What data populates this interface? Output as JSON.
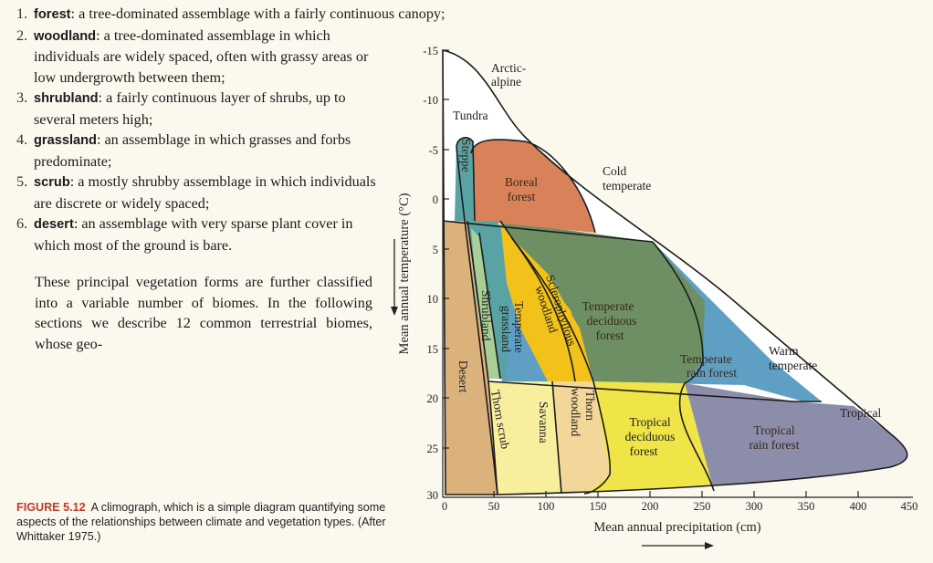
{
  "list": [
    {
      "num": "1.",
      "term": "forest",
      "desc": ": a tree-dominated assemblage with a fairly continuous canopy;"
    },
    {
      "num": "2.",
      "term": "woodland",
      "desc": ": a tree-dominated assemblage in which individuals are widely spaced, often with grassy areas or low undergrowth between them;"
    },
    {
      "num": "3.",
      "term": "shrubland",
      "desc": ": a fairly continuous layer of shrubs, up to several meters high;"
    },
    {
      "num": "4.",
      "term": "grassland",
      "desc": ": an assemblage in which grasses and forbs predominate;"
    },
    {
      "num": "5.",
      "term": "scrub",
      "desc": ": a mostly shrubby assemblage in which individuals are discrete or widely spaced;"
    },
    {
      "num": "6.",
      "term": "desert",
      "desc": ": an assemblage with very sparse plant cover in which most of the ground is bare."
    }
  ],
  "paragraph": "These principal vegetation forms are further classified into a variable number of biomes. In the following sections we describe 12 common terrestrial biomes, whose geo-",
  "caption": {
    "label": "FIGURE 5.12",
    "text": "A climograph, which is a simple diagram quantifying some aspects of the relationships between climate and vegetation types. (After Whittaker 1975.)"
  },
  "figure": {
    "y_axis_label": "Mean annual temperature (°C)",
    "x_axis_label": "Mean annual precipitation (cm)",
    "y_ticks": [
      "-15",
      "-10",
      "-5",
      "0",
      "5",
      "10",
      "15",
      "20",
      "25",
      "30"
    ],
    "x_ticks": [
      "0",
      "50",
      "100",
      "150",
      "200",
      "250",
      "300",
      "350",
      "400",
      "450"
    ],
    "labels": {
      "arctic_1": "Arctic-",
      "arctic_2": "alpine",
      "tundra": "Tundra",
      "steppe": "Steppe",
      "boreal_1": "Boreal",
      "boreal_2": "forest",
      "cold_1": "Cold",
      "cold_2": "temperate",
      "shrubland": "Shrubland",
      "temp_grass_1": "Temperate",
      "temp_grass_2": "grassland",
      "scler_1": "Sclerophyllous",
      "scler_2": "woodland",
      "temp_dec_1": "Temperate",
      "temp_dec_2": "deciduous",
      "temp_dec_3": "forest",
      "temp_rain_1": "Temperate",
      "temp_rain_2": "rain forest",
      "warm_1": "Warm",
      "warm_2": "temperate",
      "tropical": "Tropical",
      "desert": "Desert",
      "thorn_scrub": "Thorn scrub",
      "savanna": "Savanna",
      "thorn_wood_1": "Thorn",
      "thorn_wood_2": "woodland",
      "trop_dec_1": "Tropical",
      "trop_dec_2": "deciduous",
      "trop_dec_3": "forest",
      "trop_rain_1": "Tropical",
      "trop_rain_2": "rain forest"
    },
    "colors": {
      "tundra": "#ffffff",
      "boreal": "#d9825a",
      "temperate_deciduous": "#6d8f63",
      "temperate_grassland": "#f2c21a",
      "shrubland": "#a9cf96",
      "steppe": "#5aa3a5",
      "cool_blue": "#5f9fc4",
      "desert": "#dcb27c",
      "savanna": "#f8ef9e",
      "thorn_woodland": "#f2d69a",
      "tropical_deciduous": "#efe448",
      "tropical_rain": "#8c8cab"
    }
  }
}
